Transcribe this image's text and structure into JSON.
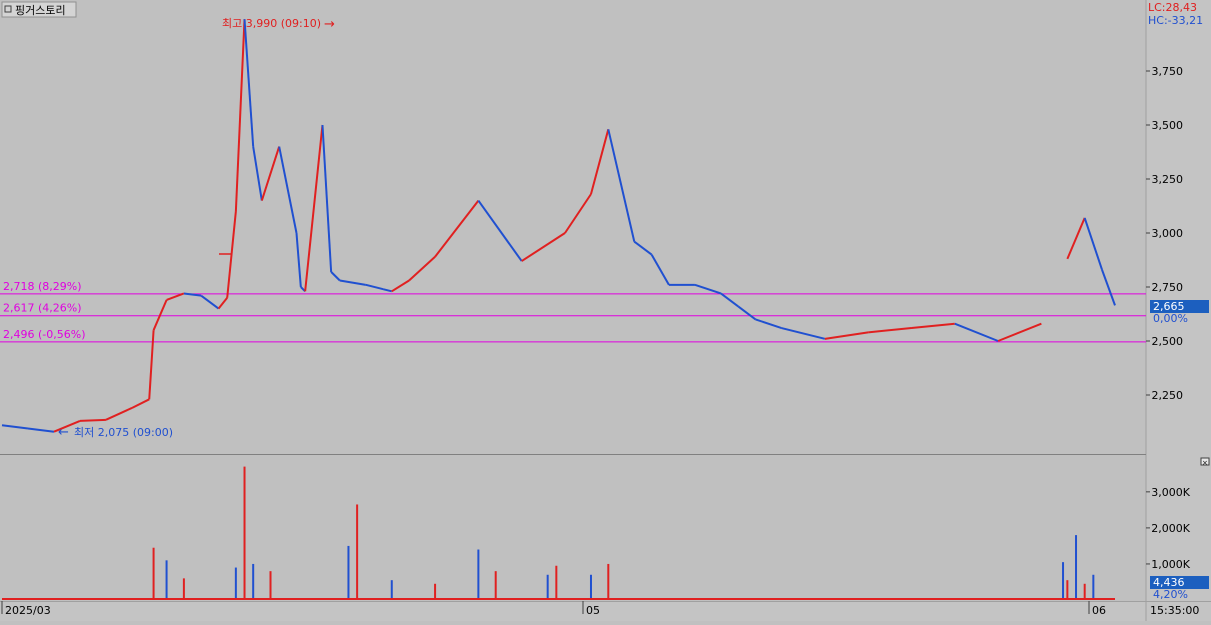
{
  "window": {
    "title": "핑거스토리",
    "icon": "window-box-icon"
  },
  "price_header": {
    "lc": "LC:28,43",
    "hc": "HC:-33,21"
  },
  "colors": {
    "up": "#e02020",
    "down": "#2050d0",
    "level": "#e000e0",
    "badge": "#1c5fbf"
  },
  "annotations": {
    "high": {
      "text": "최고 3,990 (09:10)",
      "arrow": "→"
    },
    "low": {
      "text": "최저 2,075 (09:00)",
      "arrow": "←"
    }
  },
  "level_lines": [
    {
      "label": "2,718 (8,29%)",
      "value": 2718
    },
    {
      "label": "2,617 (4,26%)",
      "value": 2617
    },
    {
      "label": "2,496 (-0,56%)",
      "value": 2496
    }
  ],
  "current": {
    "price": "2,665",
    "pct": "0,00%"
  },
  "volume_current": {
    "value": "4,436",
    "pct": "4,20%"
  },
  "time_axis": {
    "labels": [
      "2025/03",
      "05",
      "06"
    ],
    "clock": "15:35:00"
  },
  "chart_data": [
    {
      "type": "line",
      "title": "",
      "ylim": [
        2000,
        4000
      ],
      "y_ticks": [
        {
          "v": 2250,
          "label": "2,250"
        },
        {
          "v": 2500,
          "label": "2,500"
        },
        {
          "v": 2750,
          "label": "2,750"
        },
        {
          "v": 3000,
          "label": "3,000"
        },
        {
          "v": 3250,
          "label": "3,250"
        },
        {
          "v": 3500,
          "label": "3,500"
        },
        {
          "v": 3750,
          "label": "3,750"
        }
      ],
      "x": [
        0,
        3,
        6,
        9,
        12,
        15,
        17,
        17.5,
        19,
        21,
        23,
        25,
        26,
        27,
        28,
        29,
        30,
        32,
        34,
        34.5,
        35,
        37,
        38,
        39,
        42,
        44,
        45,
        47,
        50,
        55,
        60,
        65,
        68,
        70,
        73,
        75,
        77,
        80,
        83,
        85,
        87,
        90,
        95,
        100,
        105,
        110,
        115,
        120,
        123,
        125,
        127,
        128.5
      ],
      "values": [
        2110,
        2095,
        2080,
        2130,
        2135,
        2190,
        2230,
        2550,
        2690,
        2720,
        2710,
        2650,
        2700,
        3100,
        3990,
        3400,
        3150,
        3400,
        3000,
        2750,
        2730,
        3500,
        2820,
        2780,
        2760,
        2740,
        2730,
        2780,
        2890,
        3150,
        2870,
        3000,
        3180,
        3480,
        2960,
        2900,
        2760,
        2760,
        2720,
        2660,
        2600,
        2560,
        2510,
        2540,
        2560,
        2580,
        2500,
        2580,
        2880,
        3070,
        2830,
        2665
      ]
    },
    {
      "type": "bar",
      "title": "",
      "ylim": [
        0,
        3800
      ],
      "y_ticks": [
        {
          "v": 1000,
          "label": "1,000K"
        },
        {
          "v": 2000,
          "label": "2,000K"
        },
        {
          "v": 3000,
          "label": "3,000K"
        }
      ],
      "x": [
        17.5,
        19,
        21,
        27,
        28,
        29,
        31,
        40,
        41,
        45,
        50,
        55,
        57,
        63,
        64,
        68,
        70,
        122.5,
        123,
        124,
        125,
        126
      ],
      "values": [
        1450,
        1100,
        600,
        900,
        3700,
        1000,
        800,
        1500,
        2650,
        550,
        450,
        1400,
        800,
        700,
        950,
        700,
        1000,
        1050,
        550,
        1800,
        450,
        700
      ]
    }
  ]
}
